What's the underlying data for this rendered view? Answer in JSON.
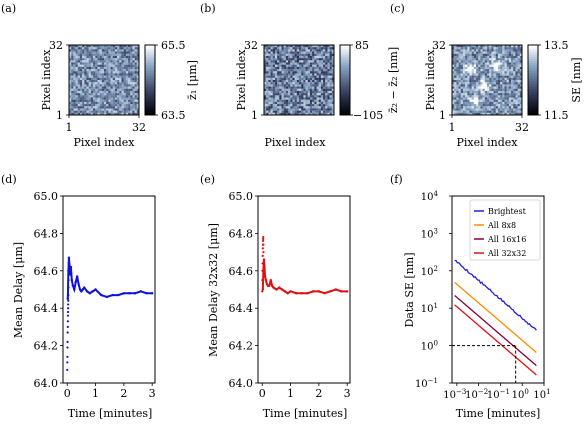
{
  "chart_data": [
    {
      "panel_label": "(a)",
      "type": "heatmap",
      "xlabel": "Pixel index",
      "ylabel": "Pixel index",
      "xticks": [
        "1",
        "32"
      ],
      "yticks": [
        "1",
        "32"
      ],
      "colorbar_label": "z̄₁ [μm]",
      "colorbar_ticks": [
        "65.5",
        "63.5"
      ],
      "clim": [
        63.5,
        65.5
      ],
      "colormap": "bone",
      "grid_size": 32,
      "seed": 11,
      "mean_level": 0.6,
      "noise_amp": 0.25
    },
    {
      "panel_label": "(b)",
      "type": "heatmap",
      "ylabel": "Pixel index",
      "xticks": [],
      "yticks": [
        "1",
        "32"
      ],
      "colorbar_label": "z̄₂ − z̄₂ [nm]",
      "colorbar_ticks": [
        "85",
        "−105"
      ],
      "clim": [
        -105,
        85
      ],
      "colormap": "bone",
      "grid_size": 32,
      "seed": 23,
      "mean_level": 0.55,
      "noise_amp": 0.3
    },
    {
      "panel_label": "(c)",
      "type": "heatmap",
      "xlabel": "Pixel index",
      "ylabel": "Pixel index",
      "xticks": [
        "1",
        "32"
      ],
      "yticks": [
        "1",
        "32"
      ],
      "colorbar_label": "SE [nm]",
      "colorbar_ticks": [
        "13.5",
        "11.5"
      ],
      "clim": [
        11.5,
        13.5
      ],
      "colormap": "bone",
      "grid_size": 32,
      "seed": 37,
      "mean_level": 0.62,
      "noise_amp": 0.25,
      "bright_spots": [
        [
          8,
          10
        ],
        [
          14,
          18
        ],
        [
          20,
          9
        ],
        [
          10,
          25
        ]
      ]
    },
    {
      "panel_label": "(d)",
      "type": "scatter",
      "xlabel": "Time [minutes]",
      "ylabel": "Mean Delay [μm]",
      "xlim": [
        -0.15,
        3.1
      ],
      "ylim": [
        64.0,
        65.0
      ],
      "xticks": [
        0,
        1,
        2,
        3
      ],
      "yticks": [
        64.0,
        64.2,
        64.4,
        64.6,
        64.8,
        65.0
      ],
      "ytick_labels": [
        "64.0",
        "64.2",
        "64.4",
        "64.6",
        "64.8",
        "65.0"
      ],
      "color": "#1010e0",
      "curve": {
        "x": [
          0.02,
          0.04,
          0.06,
          0.08,
          0.1,
          0.13,
          0.16,
          0.2,
          0.25,
          0.3,
          0.35,
          0.4,
          0.45,
          0.5,
          0.55,
          0.6,
          0.7,
          0.8,
          0.9,
          1.0,
          1.2,
          1.4,
          1.6,
          1.8,
          2.0,
          2.2,
          2.4,
          2.6,
          2.8,
          3.0
        ],
        "y": [
          64.45,
          64.6,
          64.67,
          64.63,
          64.58,
          64.62,
          64.55,
          64.52,
          64.5,
          64.54,
          64.57,
          64.53,
          64.5,
          64.49,
          64.5,
          64.51,
          64.49,
          64.48,
          64.49,
          64.5,
          64.47,
          64.46,
          64.47,
          64.47,
          64.48,
          64.48,
          64.48,
          64.49,
          64.48,
          64.48
        ]
      },
      "early_scatter": {
        "x": [
          0.0,
          0.003,
          0.006,
          0.009,
          0.012,
          0.015,
          0.018,
          0.021,
          0.024,
          0.027,
          0.03,
          0.033,
          0.036,
          0.039,
          0.042,
          0.045,
          0.048,
          0.051
        ],
        "y": [
          64.07,
          64.11,
          64.14,
          64.19,
          64.22,
          64.27,
          64.3,
          64.33,
          64.36,
          64.38,
          64.4,
          64.42,
          64.44,
          64.47,
          64.51,
          64.55,
          64.6,
          64.64
        ]
      }
    },
    {
      "panel_label": "(e)",
      "type": "scatter",
      "xlabel": "Time [minutes]",
      "ylabel": "Mean Delay 32x32 [μm]",
      "xlim": [
        -0.15,
        3.1
      ],
      "ylim": [
        64.0,
        65.0
      ],
      "xticks": [
        0,
        1,
        2,
        3
      ],
      "yticks": [
        64.0,
        64.2,
        64.4,
        64.6,
        64.8,
        65.0
      ],
      "ytick_labels": [
        "64.0",
        "64.2",
        "64.4",
        "64.6",
        "64.8",
        "65.0"
      ],
      "color": "#e01010",
      "curve": {
        "x": [
          0.02,
          0.04,
          0.06,
          0.08,
          0.1,
          0.13,
          0.16,
          0.2,
          0.25,
          0.3,
          0.35,
          0.4,
          0.5,
          0.6,
          0.7,
          0.8,
          0.9,
          1.0,
          1.2,
          1.4,
          1.6,
          1.8,
          2.0,
          2.2,
          2.4,
          2.6,
          2.8,
          3.0
        ],
        "y": [
          64.5,
          64.6,
          64.66,
          64.62,
          64.57,
          64.55,
          64.53,
          64.52,
          64.52,
          64.55,
          64.52,
          64.51,
          64.5,
          64.51,
          64.5,
          64.49,
          64.48,
          64.49,
          64.48,
          64.48,
          64.48,
          64.49,
          64.49,
          64.48,
          64.49,
          64.5,
          64.49,
          64.49
        ]
      },
      "early_scatter": {
        "x": [
          0.0,
          0.004,
          0.008,
          0.012,
          0.016,
          0.02,
          0.024,
          0.028,
          0.032,
          0.036,
          0.04,
          0.044
        ],
        "y": [
          64.49,
          64.55,
          64.6,
          64.64,
          64.68,
          64.72,
          64.74,
          64.76,
          64.77,
          64.78,
          64.74,
          64.7
        ]
      }
    },
    {
      "panel_label": "(f)",
      "type": "line",
      "xscale": "log",
      "yscale": "log",
      "xlabel": "Time [minutes]",
      "ylabel": "Data SE [nm]",
      "xlim": [
        0.0006,
        10
      ],
      "ylim": [
        0.1,
        10000
      ],
      "xtick_exponents": [
        -3,
        -2,
        -1,
        0,
        1
      ],
      "ytick_exponents": [
        -1,
        0,
        1,
        2,
        3,
        4
      ],
      "legend_position": "top-right",
      "series": [
        {
          "name": "Brightest",
          "color": "#1f1fe0",
          "a": 2.5,
          "noisy": true
        },
        {
          "name": "All 8x8",
          "color": "#ff8c00",
          "a": 1.9,
          "noisy": false
        },
        {
          "name": "All 16x16",
          "color": "#8b0033",
          "a": 1.55,
          "noisy": false
        },
        {
          "name": "All 32x32",
          "color": "#e01010",
          "a": 1.3,
          "noisy": false
        }
      ],
      "reference": {
        "y": 1,
        "x": 0.5
      }
    }
  ]
}
